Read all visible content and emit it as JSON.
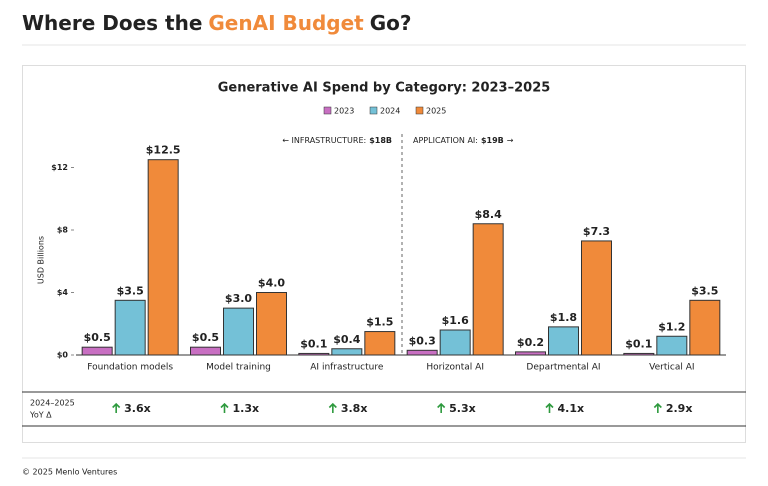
{
  "header": {
    "title_parts": [
      "Where Does the",
      "GenAI Budget",
      "Go?"
    ]
  },
  "chart_data": {
    "type": "bar",
    "title": "Generative AI Spend by Category: 2023–2025",
    "ylabel": "USD Billions",
    "categories": [
      "Foundation models",
      "Model training",
      "AI infrastructure",
      "Horizontal AI",
      "Departmental AI",
      "Vertical AI"
    ],
    "series": [
      {
        "name": "2023",
        "color": "#c86fc2",
        "values": [
          0.5,
          0.5,
          0.1,
          0.3,
          0.2,
          0.1
        ],
        "value_labels": [
          "$0.5",
          "$0.5",
          "$0.1",
          "$0.3",
          "$0.2",
          "$0.1"
        ]
      },
      {
        "name": "2024",
        "color": "#74c1d7",
        "values": [
          3.5,
          3.0,
          0.4,
          1.6,
          1.8,
          1.2
        ],
        "value_labels": [
          "$3.5",
          "$3.0",
          "$0.4",
          "$1.6",
          "$1.8",
          "$1.2"
        ]
      },
      {
        "name": "2025",
        "color": "#f08a3a",
        "values": [
          12.5,
          4.0,
          1.5,
          8.4,
          7.3,
          3.5
        ],
        "value_labels": [
          "$12.5",
          "$4.0",
          "$1.5",
          "$8.4",
          "$7.3",
          "$3.5"
        ]
      }
    ],
    "ylim": [
      0,
      14
    ],
    "yticks": [
      {
        "value": 0,
        "label": "$0"
      },
      {
        "value": 4,
        "label": "$4"
      },
      {
        "value": 8,
        "label": "$8"
      },
      {
        "value": 12,
        "label": "$12"
      }
    ],
    "annotations": [
      {
        "prefix": "← INFRASTRUCTURE:",
        "amount": "$18B"
      },
      {
        "prefix": "APPLICATION AI:",
        "amount": "$19B",
        "suffix": "→"
      }
    ]
  },
  "table": {
    "row_label": [
      "2024–2025",
      "YoY Δ"
    ],
    "values": [
      "3.6x",
      "1.3x",
      "3.8x",
      "5.3x",
      "4.1x",
      "2.9x"
    ]
  },
  "footer": "© 2025 Menlo Ventures"
}
